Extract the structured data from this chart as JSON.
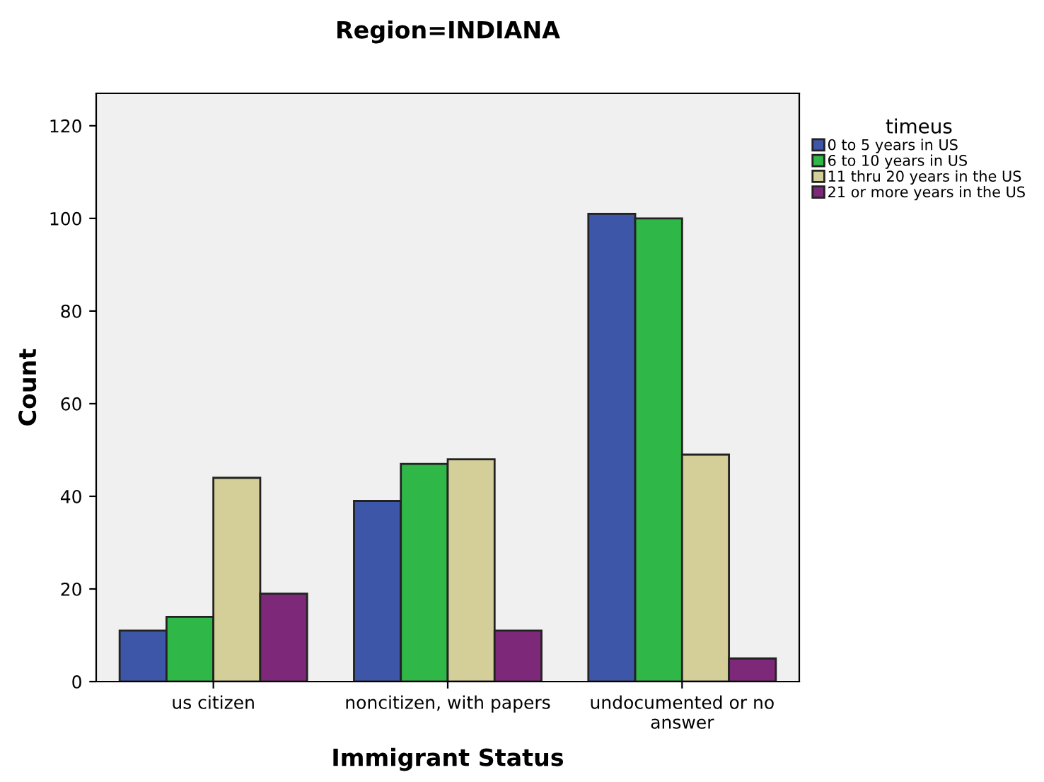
{
  "chart_data": {
    "type": "bar",
    "title": "Region=INDIANA",
    "xlabel": "Immigrant Status",
    "ylabel": "Count",
    "legend_title": "timeus",
    "categories": [
      "us citizen",
      "noncitizen, with papers",
      "undocumented or no\nanswer"
    ],
    "series": [
      {
        "name": "0 to 5 years in US",
        "color": "#3d56a8",
        "values": [
          11,
          39,
          101
        ]
      },
      {
        "name": "6 to 10 years in US",
        "color": "#2fb748",
        "values": [
          14,
          47,
          100
        ]
      },
      {
        "name": "11 thru 20 years in the US",
        "color": "#d4cf98",
        "values": [
          44,
          48,
          49
        ]
      },
      {
        "name": "21 or more years in the US",
        "color": "#7d2878",
        "values": [
          19,
          11,
          5
        ]
      }
    ],
    "ylim": [
      0,
      127
    ],
    "yticks": [
      0,
      20,
      40,
      60,
      80,
      100,
      120
    ],
    "grid": false,
    "legend": "right"
  }
}
